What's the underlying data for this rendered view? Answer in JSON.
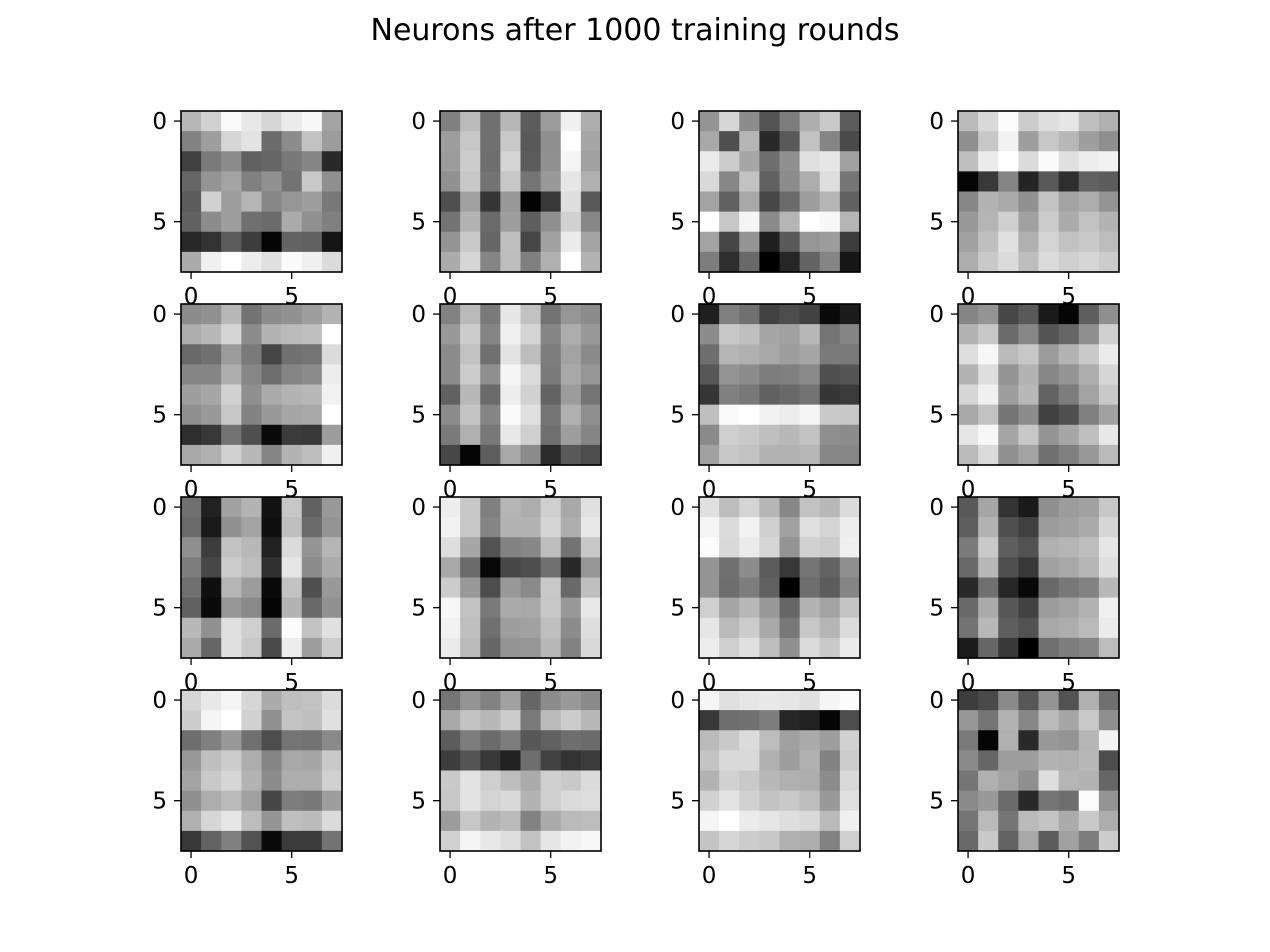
{
  "chart_data": {
    "type": "heatmap",
    "title": "Neurons after 1000 training rounds",
    "colormap": "gray",
    "grid": false,
    "layout": {
      "rows": 4,
      "cols": 4
    },
    "image_shape": [
      8,
      8
    ],
    "x_ticks": [
      0,
      5
    ],
    "y_ticks": [
      0,
      5
    ],
    "x_tick_labels": [
      "0",
      "5"
    ],
    "y_tick_labels": [
      "0",
      "5"
    ],
    "value_range": [
      0,
      1
    ],
    "panels": [
      [
        [
          0.72,
          0.82,
          0.98,
          0.91,
          0.84,
          0.92,
          0.97,
          0.64
        ],
        [
          0.51,
          0.62,
          0.84,
          0.89,
          0.42,
          0.55,
          0.76,
          0.61
        ],
        [
          0.25,
          0.48,
          0.55,
          0.38,
          0.4,
          0.47,
          0.52,
          0.16
        ],
        [
          0.4,
          0.58,
          0.64,
          0.5,
          0.57,
          0.45,
          0.79,
          0.56
        ],
        [
          0.36,
          0.82,
          0.62,
          0.71,
          0.53,
          0.59,
          0.62,
          0.47
        ],
        [
          0.38,
          0.55,
          0.62,
          0.44,
          0.42,
          0.67,
          0.57,
          0.5
        ],
        [
          0.16,
          0.2,
          0.36,
          0.24,
          0.02,
          0.39,
          0.38,
          0.08
        ],
        [
          0.67,
          0.94,
          1.0,
          0.93,
          0.88,
          0.98,
          0.94,
          0.86
        ]
      ],
      [
        [
          0.5,
          0.73,
          0.44,
          0.72,
          0.36,
          0.61,
          0.94,
          0.68
        ],
        [
          0.62,
          0.78,
          0.44,
          0.79,
          0.35,
          0.56,
          1.0,
          0.65
        ],
        [
          0.61,
          0.8,
          0.43,
          0.83,
          0.36,
          0.57,
          0.96,
          0.63
        ],
        [
          0.57,
          0.78,
          0.45,
          0.78,
          0.46,
          0.6,
          0.9,
          0.69
        ],
        [
          0.31,
          0.63,
          0.21,
          0.6,
          0.01,
          0.22,
          0.87,
          0.35
        ],
        [
          0.45,
          0.7,
          0.42,
          0.62,
          0.37,
          0.56,
          0.82,
          0.53
        ],
        [
          0.58,
          0.79,
          0.4,
          0.75,
          0.28,
          0.63,
          0.92,
          0.64
        ],
        [
          0.67,
          0.84,
          0.52,
          0.74,
          0.5,
          0.69,
          1.0,
          0.7
        ]
      ],
      [
        [
          0.58,
          0.84,
          0.55,
          0.33,
          0.49,
          0.68,
          0.79,
          0.36
        ],
        [
          0.66,
          0.31,
          0.71,
          0.16,
          0.35,
          0.76,
          0.52,
          0.29
        ],
        [
          0.92,
          0.8,
          0.65,
          0.43,
          0.56,
          0.88,
          0.9,
          0.63
        ],
        [
          0.85,
          0.53,
          0.76,
          0.38,
          0.55,
          0.68,
          0.87,
          0.46
        ],
        [
          0.64,
          0.38,
          0.66,
          0.28,
          0.42,
          0.62,
          0.71,
          0.38
        ],
        [
          1.0,
          0.78,
          0.96,
          0.54,
          0.71,
          1.0,
          0.97,
          0.71
        ],
        [
          0.64,
          0.27,
          0.58,
          0.12,
          0.35,
          0.59,
          0.61,
          0.24
        ],
        [
          0.49,
          0.18,
          0.41,
          0.0,
          0.15,
          0.39,
          0.52,
          0.09
        ]
      ],
      [
        [
          0.73,
          0.85,
          0.99,
          0.8,
          0.87,
          0.9,
          0.75,
          0.69
        ],
        [
          0.56,
          0.78,
          0.95,
          0.62,
          0.78,
          0.72,
          0.62,
          0.56
        ],
        [
          0.75,
          0.92,
          1.0,
          0.86,
          0.98,
          0.88,
          0.93,
          0.95
        ],
        [
          0.02,
          0.22,
          0.52,
          0.14,
          0.35,
          0.18,
          0.38,
          0.36
        ],
        [
          0.53,
          0.7,
          0.67,
          0.57,
          0.77,
          0.64,
          0.68,
          0.58
        ],
        [
          0.6,
          0.71,
          0.81,
          0.63,
          0.8,
          0.67,
          0.76,
          0.7
        ],
        [
          0.63,
          0.75,
          0.88,
          0.69,
          0.83,
          0.76,
          0.79,
          0.74
        ],
        [
          0.68,
          0.79,
          0.86,
          0.74,
          0.86,
          0.81,
          0.84,
          0.8
        ]
      ],
      [
        [
          0.55,
          0.57,
          0.72,
          0.45,
          0.55,
          0.57,
          0.62,
          0.7
        ],
        [
          0.68,
          0.72,
          0.83,
          0.55,
          0.7,
          0.73,
          0.75,
          1.0
        ],
        [
          0.41,
          0.44,
          0.61,
          0.48,
          0.27,
          0.44,
          0.46,
          0.86
        ],
        [
          0.52,
          0.52,
          0.68,
          0.53,
          0.43,
          0.52,
          0.55,
          0.93
        ],
        [
          0.62,
          0.65,
          0.82,
          0.56,
          0.67,
          0.7,
          0.72,
          0.95
        ],
        [
          0.56,
          0.6,
          0.78,
          0.51,
          0.6,
          0.65,
          0.66,
          1.0
        ],
        [
          0.18,
          0.22,
          0.45,
          0.31,
          0.04,
          0.23,
          0.22,
          0.61
        ],
        [
          0.66,
          0.69,
          0.82,
          0.72,
          0.52,
          0.7,
          0.74,
          0.94
        ]
      ],
      [
        [
          0.51,
          0.73,
          0.48,
          0.9,
          0.76,
          0.45,
          0.59,
          0.55
        ],
        [
          0.6,
          0.8,
          0.52,
          0.94,
          0.83,
          0.52,
          0.68,
          0.6
        ],
        [
          0.55,
          0.76,
          0.44,
          0.89,
          0.74,
          0.49,
          0.64,
          0.54
        ],
        [
          0.55,
          0.8,
          0.56,
          0.96,
          0.86,
          0.48,
          0.66,
          0.59
        ],
        [
          0.38,
          0.72,
          0.42,
          0.93,
          0.82,
          0.39,
          0.61,
          0.46
        ],
        [
          0.55,
          0.77,
          0.52,
          0.98,
          0.88,
          0.46,
          0.69,
          0.56
        ],
        [
          0.48,
          0.69,
          0.47,
          0.91,
          0.81,
          0.44,
          0.62,
          0.52
        ],
        [
          0.28,
          0.02,
          0.37,
          0.66,
          0.55,
          0.17,
          0.35,
          0.3
        ]
      ],
      [
        [
          0.12,
          0.5,
          0.44,
          0.26,
          0.3,
          0.26,
          0.04,
          0.11
        ],
        [
          0.55,
          0.78,
          0.75,
          0.65,
          0.63,
          0.72,
          0.46,
          0.52
        ],
        [
          0.43,
          0.71,
          0.69,
          0.66,
          0.62,
          0.65,
          0.48,
          0.48
        ],
        [
          0.34,
          0.58,
          0.55,
          0.49,
          0.5,
          0.54,
          0.31,
          0.33
        ],
        [
          0.21,
          0.5,
          0.47,
          0.38,
          0.41,
          0.45,
          0.21,
          0.23
        ],
        [
          0.75,
          0.98,
          1.0,
          0.95,
          0.93,
          0.96,
          0.79,
          0.78
        ],
        [
          0.54,
          0.81,
          0.79,
          0.75,
          0.72,
          0.76,
          0.56,
          0.55
        ],
        [
          0.63,
          0.78,
          0.76,
          0.7,
          0.7,
          0.72,
          0.53,
          0.53
        ]
      ],
      [
        [
          0.52,
          0.58,
          0.28,
          0.35,
          0.1,
          0.02,
          0.37,
          0.56
        ],
        [
          0.7,
          0.78,
          0.42,
          0.53,
          0.33,
          0.4,
          0.56,
          0.81
        ],
        [
          0.87,
          0.97,
          0.73,
          0.78,
          0.61,
          0.7,
          0.79,
          0.92
        ],
        [
          0.7,
          0.87,
          0.58,
          0.7,
          0.53,
          0.58,
          0.68,
          0.84
        ],
        [
          0.84,
          0.94,
          0.62,
          0.72,
          0.39,
          0.49,
          0.64,
          0.79
        ],
        [
          0.66,
          0.76,
          0.46,
          0.55,
          0.25,
          0.31,
          0.5,
          0.63
        ],
        [
          0.9,
          0.97,
          0.65,
          0.78,
          0.58,
          0.65,
          0.75,
          0.91
        ],
        [
          0.73,
          0.86,
          0.57,
          0.64,
          0.44,
          0.5,
          0.6,
          0.73
        ]
      ],
      [
        [
          0.44,
          0.13,
          0.63,
          0.7,
          0.07,
          0.78,
          0.38,
          0.6
        ],
        [
          0.42,
          0.1,
          0.57,
          0.64,
          0.06,
          0.75,
          0.42,
          0.58
        ],
        [
          0.56,
          0.24,
          0.76,
          0.72,
          0.13,
          0.86,
          0.58,
          0.71
        ],
        [
          0.49,
          0.28,
          0.8,
          0.74,
          0.19,
          0.9,
          0.55,
          0.67
        ],
        [
          0.44,
          0.06,
          0.71,
          0.61,
          0.04,
          0.76,
          0.31,
          0.6
        ],
        [
          0.38,
          0.04,
          0.59,
          0.54,
          0.02,
          0.7,
          0.41,
          0.57
        ],
        [
          0.72,
          0.57,
          0.88,
          0.81,
          0.42,
          0.99,
          0.76,
          0.88
        ],
        [
          0.67,
          0.4,
          0.88,
          0.79,
          0.29,
          0.93,
          0.62,
          0.8
        ]
      ],
      [
        [
          0.93,
          0.78,
          0.5,
          0.71,
          0.68,
          0.81,
          0.66,
          0.88
        ],
        [
          0.95,
          0.78,
          0.52,
          0.7,
          0.7,
          0.83,
          0.68,
          0.91
        ],
        [
          0.87,
          0.65,
          0.32,
          0.51,
          0.53,
          0.74,
          0.45,
          0.78
        ],
        [
          0.66,
          0.42,
          0.03,
          0.28,
          0.3,
          0.44,
          0.16,
          0.59
        ],
        [
          0.8,
          0.6,
          0.3,
          0.6,
          0.54,
          0.79,
          0.41,
          0.75
        ],
        [
          0.97,
          0.76,
          0.48,
          0.67,
          0.66,
          0.78,
          0.6,
          0.91
        ],
        [
          0.95,
          0.75,
          0.44,
          0.62,
          0.63,
          0.75,
          0.55,
          0.87
        ],
        [
          0.92,
          0.73,
          0.4,
          0.58,
          0.59,
          0.72,
          0.51,
          0.85
        ]
      ],
      [
        [
          0.88,
          0.74,
          0.83,
          0.71,
          0.53,
          0.76,
          0.72,
          0.86
        ],
        [
          0.96,
          0.86,
          0.95,
          0.81,
          0.63,
          0.88,
          0.83,
          0.93
        ],
        [
          0.99,
          0.85,
          0.92,
          0.84,
          0.58,
          0.82,
          0.8,
          0.94
        ],
        [
          0.58,
          0.44,
          0.55,
          0.36,
          0.22,
          0.46,
          0.39,
          0.56
        ],
        [
          0.58,
          0.43,
          0.49,
          0.38,
          0.0,
          0.43,
          0.36,
          0.52
        ],
        [
          0.81,
          0.65,
          0.72,
          0.6,
          0.4,
          0.7,
          0.64,
          0.77
        ],
        [
          0.9,
          0.73,
          0.8,
          0.66,
          0.47,
          0.78,
          0.71,
          0.86
        ],
        [
          0.93,
          0.81,
          0.88,
          0.74,
          0.56,
          0.86,
          0.79,
          0.92
        ]
      ],
      [
        [
          0.35,
          0.65,
          0.2,
          0.1,
          0.56,
          0.61,
          0.63,
          0.78
        ],
        [
          0.37,
          0.7,
          0.31,
          0.25,
          0.61,
          0.63,
          0.67,
          0.84
        ],
        [
          0.48,
          0.79,
          0.37,
          0.32,
          0.69,
          0.71,
          0.74,
          0.9
        ],
        [
          0.41,
          0.72,
          0.31,
          0.22,
          0.63,
          0.66,
          0.71,
          0.87
        ],
        [
          0.16,
          0.44,
          0.15,
          0.03,
          0.41,
          0.47,
          0.51,
          0.72
        ],
        [
          0.41,
          0.67,
          0.34,
          0.26,
          0.61,
          0.64,
          0.7,
          0.94
        ],
        [
          0.45,
          0.72,
          0.37,
          0.32,
          0.66,
          0.68,
          0.73,
          0.92
        ],
        [
          0.11,
          0.4,
          0.22,
          0.0,
          0.44,
          0.49,
          0.52,
          0.74
        ]
      ],
      [
        [
          0.84,
          0.91,
          0.96,
          0.84,
          0.67,
          0.75,
          0.76,
          0.86
        ],
        [
          0.8,
          0.96,
          1.0,
          0.82,
          0.57,
          0.77,
          0.75,
          0.88
        ],
        [
          0.43,
          0.5,
          0.6,
          0.44,
          0.3,
          0.46,
          0.45,
          0.54
        ],
        [
          0.6,
          0.75,
          0.8,
          0.68,
          0.52,
          0.66,
          0.65,
          0.79
        ],
        [
          0.64,
          0.79,
          0.84,
          0.7,
          0.55,
          0.68,
          0.68,
          0.82
        ],
        [
          0.56,
          0.68,
          0.73,
          0.63,
          0.27,
          0.49,
          0.47,
          0.62
        ],
        [
          0.69,
          0.84,
          0.9,
          0.74,
          0.58,
          0.75,
          0.73,
          0.86
        ],
        [
          0.22,
          0.39,
          0.5,
          0.32,
          0.04,
          0.23,
          0.23,
          0.45
        ]
      ],
      [
        [
          0.46,
          0.58,
          0.51,
          0.63,
          0.4,
          0.55,
          0.6,
          0.54
        ],
        [
          0.66,
          0.76,
          0.72,
          0.8,
          0.48,
          0.73,
          0.8,
          0.72
        ],
        [
          0.36,
          0.49,
          0.42,
          0.49,
          0.34,
          0.38,
          0.43,
          0.42
        ],
        [
          0.24,
          0.33,
          0.22,
          0.13,
          0.43,
          0.26,
          0.2,
          0.23
        ],
        [
          0.79,
          0.89,
          0.81,
          0.74,
          0.67,
          0.81,
          0.79,
          0.86
        ],
        [
          0.78,
          0.89,
          0.83,
          0.85,
          0.7,
          0.81,
          0.86,
          0.87
        ],
        [
          0.61,
          0.78,
          0.7,
          0.73,
          0.51,
          0.67,
          0.73,
          0.74
        ],
        [
          0.82,
          0.96,
          0.91,
          0.87,
          0.76,
          0.9,
          0.95,
          0.97
        ]
      ],
      [
        [
          0.96,
          0.88,
          0.9,
          0.91,
          0.9,
          0.88,
          0.96,
          0.99
        ],
        [
          0.22,
          0.43,
          0.44,
          0.49,
          0.15,
          0.13,
          0.02,
          0.3
        ],
        [
          0.73,
          0.79,
          0.86,
          0.74,
          0.63,
          0.67,
          0.62,
          0.82
        ],
        [
          0.77,
          0.85,
          0.85,
          0.69,
          0.62,
          0.69,
          0.51,
          0.8
        ],
        [
          0.7,
          0.82,
          0.79,
          0.72,
          0.69,
          0.68,
          0.55,
          0.85
        ],
        [
          0.82,
          0.89,
          0.82,
          0.76,
          0.79,
          0.74,
          0.6,
          0.88
        ],
        [
          0.96,
          1.0,
          0.92,
          0.9,
          0.87,
          0.85,
          0.73,
          0.94
        ],
        [
          0.77,
          0.84,
          0.8,
          0.78,
          0.69,
          0.68,
          0.51,
          0.81
        ]
      ],
      [
        [
          0.24,
          0.29,
          0.54,
          0.34,
          0.58,
          0.32,
          0.69,
          0.44
        ],
        [
          0.59,
          0.46,
          0.7,
          0.53,
          0.73,
          0.65,
          0.79,
          0.56
        ],
        [
          0.48,
          0.02,
          0.69,
          0.16,
          0.6,
          0.58,
          0.71,
          0.95
        ],
        [
          0.54,
          0.4,
          0.62,
          0.62,
          0.7,
          0.69,
          0.72,
          0.3
        ],
        [
          0.46,
          0.69,
          0.64,
          0.56,
          0.87,
          0.71,
          0.7,
          0.4
        ],
        [
          0.54,
          0.6,
          0.42,
          0.16,
          0.46,
          0.43,
          0.99,
          0.58
        ],
        [
          0.46,
          0.73,
          0.46,
          0.73,
          0.77,
          0.67,
          0.79,
          0.68
        ],
        [
          0.41,
          0.79,
          0.39,
          0.66,
          0.36,
          0.63,
          0.49,
          0.8
        ]
      ]
    ]
  }
}
